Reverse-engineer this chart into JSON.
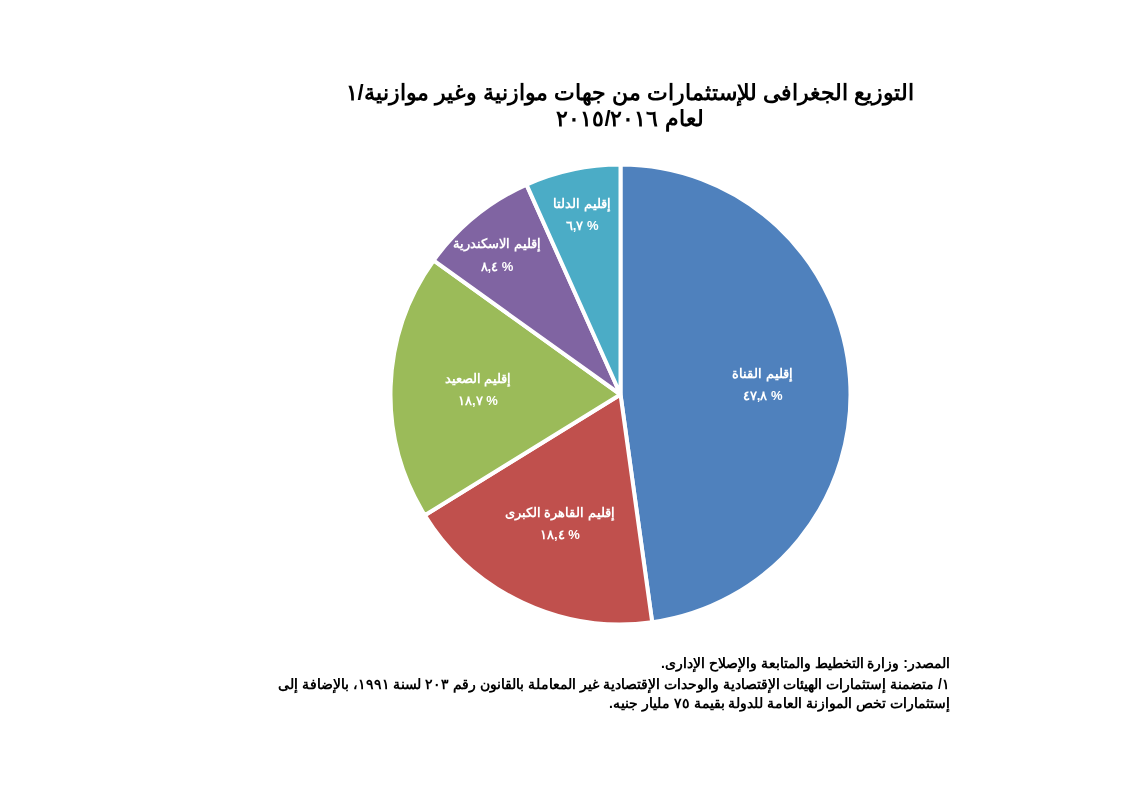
{
  "chart_data": {
    "type": "pie",
    "title": "التوزيع الجغرافى للإستثمارات من جهات موازنية وغير موازنية/١",
    "subtitle": "لعام ٢٠١٥/٢٠١٦",
    "categories": [
      "إقليم القناة",
      "إقليم القاهرة الكبرى",
      "إقليم الصعيد",
      "إقليم الاسكندرية",
      "إقليم الدلتا"
    ],
    "values": [
      47.8,
      18.4,
      18.7,
      8.4,
      6.7
    ],
    "colors": [
      "#4f81bd",
      "#c0504d",
      "#9bbb59",
      "#8064a2",
      "#4bacc6"
    ],
    "value_labels": [
      "٤٧,٨ %",
      "١٨,٤ %",
      "١٨,٧ %",
      "٨,٤ %",
      "٦,٧ %"
    ],
    "annotations": [
      "المصدر: وزارة التخطيط والمتابعة والإصلاح الإدارى.",
      "١/ متضمنة إستثمارات الهيئات الإقتصادية والوحدات الإقتصادية غير المعاملة بالقانون رقم ٢٠٣ لسنة ١٩٩١، بالإضافة إلى إستثمارات تخص الموازنة العامة للدولة بقيمة ٧٥ مليار جنيه."
    ]
  }
}
